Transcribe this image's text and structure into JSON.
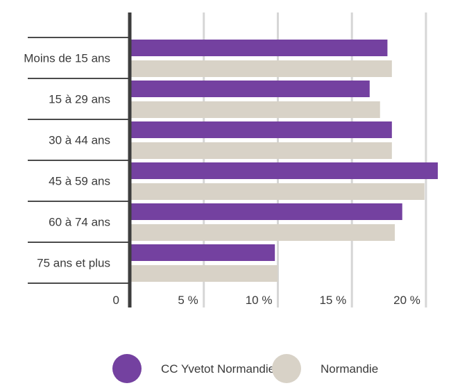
{
  "chart_data": {
    "type": "bar",
    "orientation": "horizontal",
    "categories": [
      "Moins de 15 ans",
      "15 à 29 ans",
      "30 à 44 ans",
      "45 à 59 ans",
      "60 à 74 ans",
      "75 ans et plus"
    ],
    "series": [
      {
        "name": "CC Yvetot Normandie",
        "color": "#7441a0",
        "values": [
          17.4,
          16.2,
          17.7,
          20.8,
          18.4,
          9.8
        ]
      },
      {
        "name": "Normandie",
        "color": "#d8d2c7",
        "values": [
          17.7,
          16.9,
          17.7,
          19.9,
          17.9,
          10.0
        ]
      }
    ],
    "xlim": [
      0,
      20.8
    ],
    "x_ticks": [
      {
        "value": 0,
        "label": "0"
      },
      {
        "value": 5,
        "label": "5 %"
      },
      {
        "value": 10,
        "label": "10 %"
      },
      {
        "value": 15,
        "label": "15 %"
      },
      {
        "value": 20,
        "label": "20 %"
      }
    ],
    "grid": true,
    "legend_position": "bottom",
    "colors": {
      "axis": "#3d3d3d",
      "grid": "#d6d6d6",
      "separator": "#4a4a4a",
      "text": "#3a3a3a"
    }
  }
}
